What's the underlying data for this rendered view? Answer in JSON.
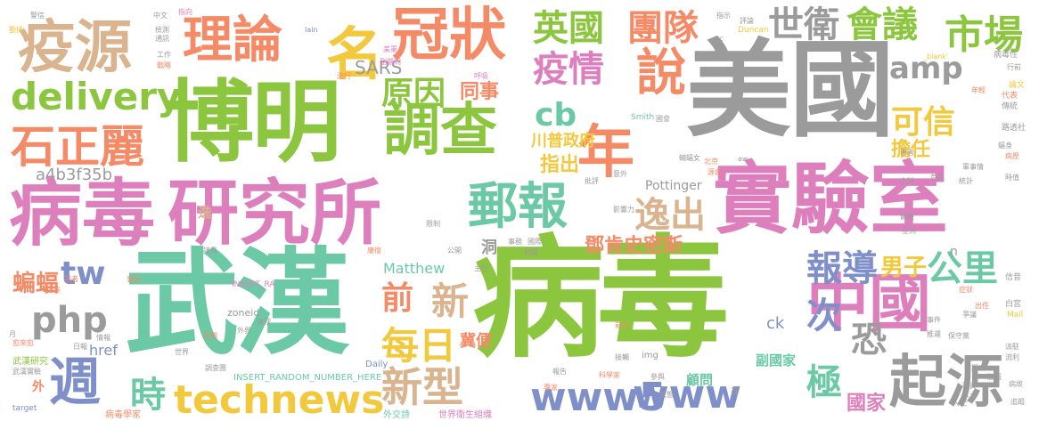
{
  "colors": {
    "green": "#8cc63e",
    "teal": "#6cc9a6",
    "pink": "#de7fbd",
    "gray": "#9b9b9b",
    "orange": "#f58a67",
    "yellow": "#f2c83c",
    "blue": "#7e8fc9",
    "tan": "#d9b48f",
    "lightgreen": "#b4d56b"
  },
  "words": {
    "bingdu_big": "病毒",
    "wuhan": "武漢",
    "meiguo": "美國",
    "boming": "博明",
    "bingdu_mid": "病毒",
    "yanjiusuo": "研究所",
    "shiyanshi": "實驗室",
    "zhongguo": "中國",
    "qiyuan": "起源",
    "yiyuan": "疫源",
    "lilun": "理論",
    "guanzhuang": "冠狀",
    "ming": "名",
    "diaocha": "調查",
    "nian": "年",
    "shuo": "說",
    "youbao": "郵報",
    "shizhengli": "石正麗",
    "delivery": "delivery",
    "technews": "technews",
    "www5": "www5",
    "www": "www",
    "php": "php",
    "tw": "tw",
    "zhou": "週",
    "shi": "時",
    "meiri": "每日",
    "xinxing": "新型",
    "xin": "新",
    "qian": "前",
    "yingguo": "英國",
    "tuandui": "團隊",
    "shiwei": "世衛",
    "huiyi": "會議",
    "shichang": "市場",
    "yiqing": "疫情",
    "yuanyin": "原因",
    "amp": "amp",
    "cb": "cb",
    "kexin": "可信",
    "yichu": "逸出",
    "baodao": "報導",
    "gongli": "公里",
    "ci": "次",
    "ji": "極",
    "kong": "恐",
    "bianfu": "蝙蝠",
    "nanzi": "男子",
    "dengkenshimisi": "鄧肯史密斯",
    "chuanpu": "川普政府",
    "zhichu": "指出",
    "danren": "擔任",
    "tongshi": "同事",
    "sars": "SARS",
    "a4b3f35b": "a4b3f35b",
    "matthew": "Matthew",
    "pottinger": "Pottinger",
    "guojia": "國家",
    "fuguojia": "副國家",
    "guwen": "顧問",
    "jibian": "冀便",
    "yi": "逸",
    "dong": "洞",
    "ck": "ck",
    "href": "href",
    "n": "n",
    "a": "a",
    "wai": "外",
    "img": "img",
    "zoneid": "zoneid",
    "insert": "INSERT_RANDOM_NUMBER_HERE",
    "insert_ra": "INSERT_RA",
    "daily": "Daily",
    "duncan": "Duncan",
    "smith": "Smith",
    "target": "target",
    "blank": "_blank'",
    "src": "src",
    "mail": "Mail",
    "iain": "Iain",
    "aw": "aw",
    "bingduxuejia": "病毒學家",
    "shijieweisheng": "世界衛生組織",
    "waijiao": "外交詩",
    "wuhanyanjiu": "武漢研究",
    "bingduxing": "病毒性",
    "baigong": "白宮",
    "xinwen": "信音",
    "pinglun": "評論",
    "zhiyuan": "職員",
    "renshi": "人士",
    "luxunshe": "路透社",
    "chuantong": "傳統",
    "daibiao": "代表",
    "lunwen": "論文",
    "nianqing": "年輕",
    "xingqian": "行前",
    "bingli": "病歷",
    "meiguo_s": "美軍",
    "fuguowei": "副顧問",
    "huxi": "呼吸",
    "liuxing": "流行",
    "gongzuo": "工作",
    "zhanlue": "戰略",
    "jiance": "檢測",
    "tongxun": "通訊",
    "zhongwen": "中文",
    "zhixiang": "指向",
    "dongyao": "動搖",
    "jingxin": "警信",
    "yiliao": "醫療",
    "zhuren": "主任",
    "jizhe": "記者",
    "caiji": "採集",
    "qingxiu": "情報",
    "rihe": "日報",
    "yizhong": "愈來愈",
    "yuezhi": "月",
    "wuhanshiyan": "武漢實驗",
    "diaochatuan": "調查團",
    "shijie": "世界",
    "huijing": "回溯",
    "qingli": "清理",
    "waijie": "外界",
    "yinyuan": "議員",
    "kangying": "康復",
    "xianzhi": "限制",
    "gongkai": "公開",
    "shishi": "事務",
    "guoji": "國際",
    "xiangguan": "相關",
    "zhuangtai": "狀態",
    "baogao": "報告",
    "zhuanjia": "專家",
    "cansu": "參與",
    "kexuejia": "科學家",
    "jiezhong": "接觸",
    "qianwang": "前往",
    "yingxiang": "影響力",
    "pipan": "批評",
    "yiwai": "意外",
    "beijing": "北京",
    "zhishi": "指示",
    "yazhou": "亞洲",
    "zhengzhuang": "症狀",
    "zhengyi": "爭議",
    "chubing": "出任",
    "shijian": "事件",
    "tuichi": "推遲",
    "baoshou": "保守黨",
    "tuoban": "脫班",
    "liuyi": "流利",
    "paixi": "派駐",
    "binggu": "病故",
    "zhuiti": "追蹤",
    "qimo": "期末",
    "renshi2": "人士",
    "shijiao": "時值",
    "tongji": "統計",
    "guoke": "國會",
    "ganran": "感染",
    "huangzhe": "患者",
    "yuanzi": "源自",
    "bianfunv": "蝙蝠女",
    "qiquan": "全球",
    "shouce": "首次",
    "junshi": "軍事情",
    "fengshen": "蝠身"
  }
}
